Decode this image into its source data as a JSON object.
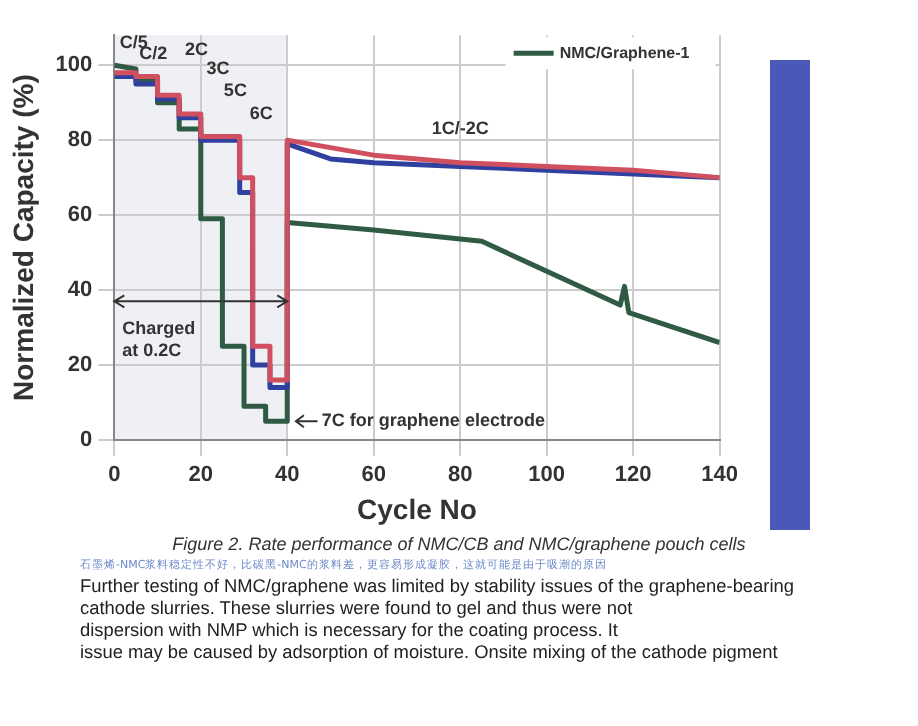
{
  "chart_data": {
    "type": "line",
    "xlabel": "Cycle No",
    "ylabel": "Normalized Capacity (%)",
    "xlim": [
      0,
      140
    ],
    "xticks": [
      0,
      20,
      40,
      60,
      80,
      100,
      120,
      140
    ],
    "ylim": [
      0,
      108
    ],
    "yticks": [
      0,
      20,
      40,
      60,
      80,
      100
    ],
    "grid": true,
    "bands": [
      {
        "axis": "x",
        "from": 0,
        "to": 40,
        "label": "Charged at 0.2C",
        "color": "#eef0f4"
      }
    ],
    "legend": "top right",
    "marker": "none",
    "line_style": "solid",
    "series": [
      {
        "color": "#d05060",
        "x": [
          0,
          5,
          5,
          10,
          10,
          15,
          15,
          20,
          20,
          29,
          29,
          32,
          32,
          36,
          36,
          40,
          40,
          60,
          80,
          100,
          120,
          140
        ],
        "values": [
          98,
          98,
          97,
          97,
          92,
          92,
          87,
          87,
          81,
          81,
          70,
          70,
          25,
          25,
          16,
          16,
          80,
          76,
          74,
          73,
          72,
          70
        ]
      },
      {
        "color": "#3040a0",
        "x": [
          0,
          5,
          5,
          10,
          10,
          15,
          15,
          20,
          20,
          29,
          29,
          32,
          32,
          36,
          36,
          40,
          40,
          50,
          60,
          80,
          100,
          120,
          140
        ],
        "values": [
          97,
          97,
          95,
          95,
          91,
          91,
          86,
          86,
          80,
          80,
          66,
          66,
          20,
          20,
          14,
          14,
          79,
          75,
          74,
          73,
          72,
          71,
          70
        ]
      },
      {
        "name": "NMC/Graphene-1",
        "color": "#2f5a44",
        "x": [
          0,
          5,
          5,
          10,
          10,
          15,
          15,
          20,
          20,
          25,
          25,
          30,
          30,
          35,
          35,
          40,
          40,
          60,
          85,
          117,
          118,
          119,
          140
        ],
        "values": [
          100,
          99,
          96,
          96,
          90,
          90,
          83,
          83,
          59,
          59,
          25,
          25,
          9,
          9,
          5,
          5,
          58,
          56,
          53,
          36,
          41,
          34,
          26
        ]
      }
    ],
    "annotations": [
      "C/5",
      "C/2",
      "2C",
      "3C",
      "5C",
      "6C",
      "1C/-2C",
      "7C for graphene electrode",
      "Figure 2. Rate performance of NMC/CB and NMC/graphene pouch cells",
      "石墨烯-NMC浆料稳定性不好，比碳黑-NMC的浆料差，更容易形成凝胶，这就可能是由于吸潮的原因",
      "Further testing of NMC/graphene was limited by stability issues of the graphene-bearing",
      "cathode slurries. These slurries were found to gel and thus were not",
      "dispersion with NMP which is necessary for the coating process. It",
      "issue may be caused by adsorption of moisture. Onsite mixing of the cathode pigment"
    ]
  }
}
